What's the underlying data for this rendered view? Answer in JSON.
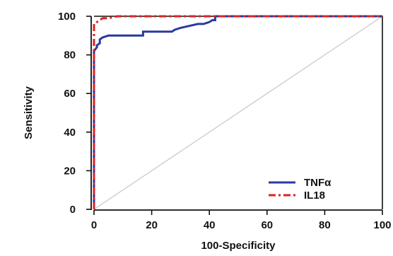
{
  "chart_data": {
    "type": "line",
    "title": "",
    "xlabel": "100-Specificity",
    "ylabel": "Sensitivity",
    "xlim": [
      0,
      100
    ],
    "ylim": [
      0,
      100
    ],
    "xticks": [
      "0",
      "20",
      "40",
      "60",
      "80",
      "100"
    ],
    "yticks": [
      "0",
      "20",
      "40",
      "60",
      "80",
      "100"
    ],
    "grid": false,
    "legend_position": "bottom-right",
    "reference_line": {
      "x": [
        0,
        100
      ],
      "y": [
        0,
        100
      ],
      "color": "#c9c3cf"
    },
    "series": [
      {
        "name": "TNFα",
        "color": "#2a3a9c",
        "style": "solid",
        "x": [
          0,
          0,
          0,
          1,
          1,
          2,
          2,
          3,
          5,
          7,
          10,
          13,
          17,
          17,
          20,
          24,
          27,
          28,
          30,
          33,
          36,
          38,
          40,
          41,
          42,
          42,
          100
        ],
        "y": [
          0,
          80,
          82,
          84,
          85,
          86,
          88,
          89,
          90,
          90,
          90,
          90,
          90,
          92,
          92,
          92,
          92,
          93,
          94,
          95,
          96,
          96,
          97,
          98,
          98,
          100,
          100
        ]
      },
      {
        "name": "IL18",
        "color": "#dd2222",
        "style": "dashdot",
        "x": [
          0,
          0,
          0,
          0,
          1,
          2,
          3,
          5,
          8,
          100
        ],
        "y": [
          0,
          86,
          93,
          96,
          97,
          98,
          99,
          99,
          100,
          100
        ]
      }
    ]
  }
}
